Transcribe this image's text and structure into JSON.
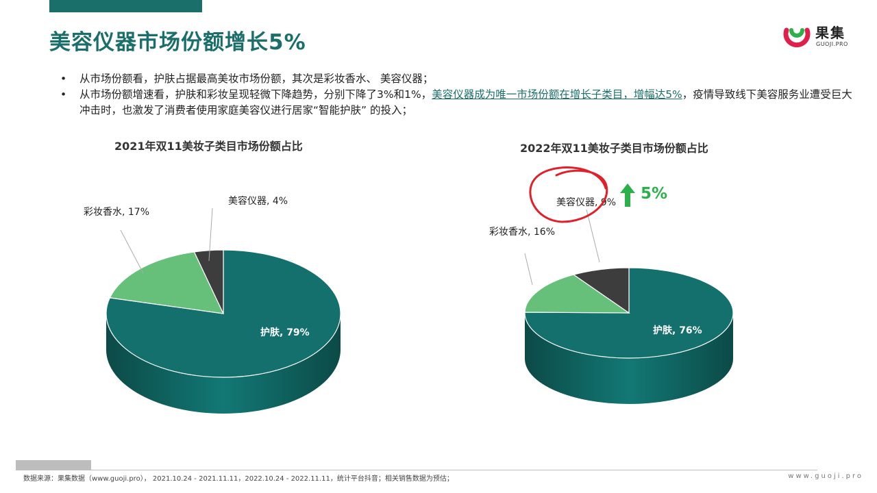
{
  "page": {
    "title": "美容仪器市场份额增长5%",
    "logo": {
      "name": "果集",
      "sub": "GUOJI.PRO"
    },
    "bullets": [
      {
        "text": "从市场份额看，护肤占据最高美妆市场份额，其次是彩妆香水、 美容仪器；",
        "highlight": "",
        "tail": ""
      },
      {
        "text": "从市场份额增速看，护肤和彩妆呈现轻微下降趋势，分别下降了3%和1%，",
        "highlight": "美容仪器成为唯一市场份额在增长子类目，增幅达5%",
        "tail": "，疫情导致线下美容服务业遭受巨大冲击时，也激发了消费者使用家庭美容仪进行居家“智能护肤” 的投入；"
      }
    ],
    "delta_label": "5%",
    "footer": {
      "source": "数据来源：果集数据（www.guoji.pro）， 2021.10.24 - 2021.11.11，2022.10.24 - 2022.11.11，统计平台抖音；相关销售数据为预估；",
      "url": "www.guoji.pro"
    },
    "colors": {
      "brand": "#1a6f6a",
      "skincare": "#13706c",
      "makeup": "#66c07a",
      "device": "#3d3d3d",
      "up": "#2bb04a",
      "circle": "#e0202a"
    }
  },
  "chart_data": [
    {
      "type": "pie",
      "title": "2021年双11美妆子类目市场份额占比",
      "categories": [
        "护肤",
        "彩妆香水",
        "美容仪器"
      ],
      "values": [
        79,
        17,
        4
      ],
      "labels": [
        "护肤, 79%",
        "彩妆香水, 17%",
        "美容仪器, 4%"
      ]
    },
    {
      "type": "pie",
      "title": "2022年双11美妆子类目市场份额占比",
      "categories": [
        "护肤",
        "彩妆香水",
        "美容仪器"
      ],
      "values": [
        76,
        16,
        9
      ],
      "labels": [
        "护肤, 76%",
        "彩妆香水, 16%",
        "美容仪器, 9%"
      ]
    }
  ]
}
